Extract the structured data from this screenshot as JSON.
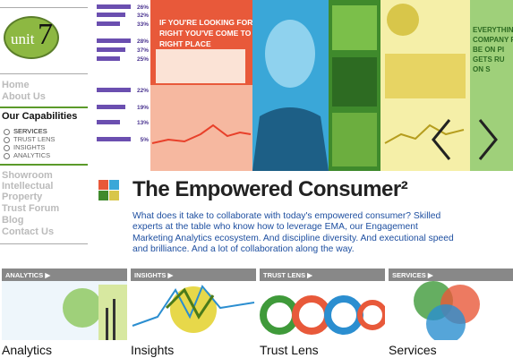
{
  "logo": {
    "text": "unit",
    "number": "7"
  },
  "nav": {
    "top": [
      "Home",
      "About Us"
    ],
    "section": "Our Capabilities",
    "subitems": [
      "SERVICES",
      "TRUST LENS",
      "INSIGHTS",
      "ANALYTICS"
    ],
    "bottom": [
      "Showroom",
      "Intellectual",
      "Property",
      "Trust Forum",
      "Blog",
      "Contact Us"
    ]
  },
  "hero": {
    "percent_labels": [
      "26%",
      "32%",
      "33%",
      "28%",
      "37%",
      "25%",
      "22%",
      "19%",
      "13%",
      "5%"
    ],
    "banner": [
      "IF YOU'RE LOOKING FOR",
      "RIGHT YOU'VE COME TO",
      "RIGHT PLACE"
    ],
    "right_panel": [
      "EVERYTHING",
      "COMPANY F",
      "BE ON PI",
      "GETS RU",
      "ON S"
    ]
  },
  "main": {
    "title": "The Empowered Consumer²",
    "body": "What does it take to collaborate with today's empowered consumer? Skilled experts at the table who know how to leverage EMA, our Engagement Marketing Analytics ecosystem. And discipline diversity. And executional speed and brilliance. And a lot of collaboration along the way."
  },
  "tiles": [
    {
      "header": "ANALYTICS",
      "label": "Analytics"
    },
    {
      "header": "INSIGHTS",
      "label": "Insights"
    },
    {
      "header": "TRUST LENS",
      "label": "Trust Lens"
    },
    {
      "header": "SERVICES",
      "label": "Services"
    }
  ]
}
